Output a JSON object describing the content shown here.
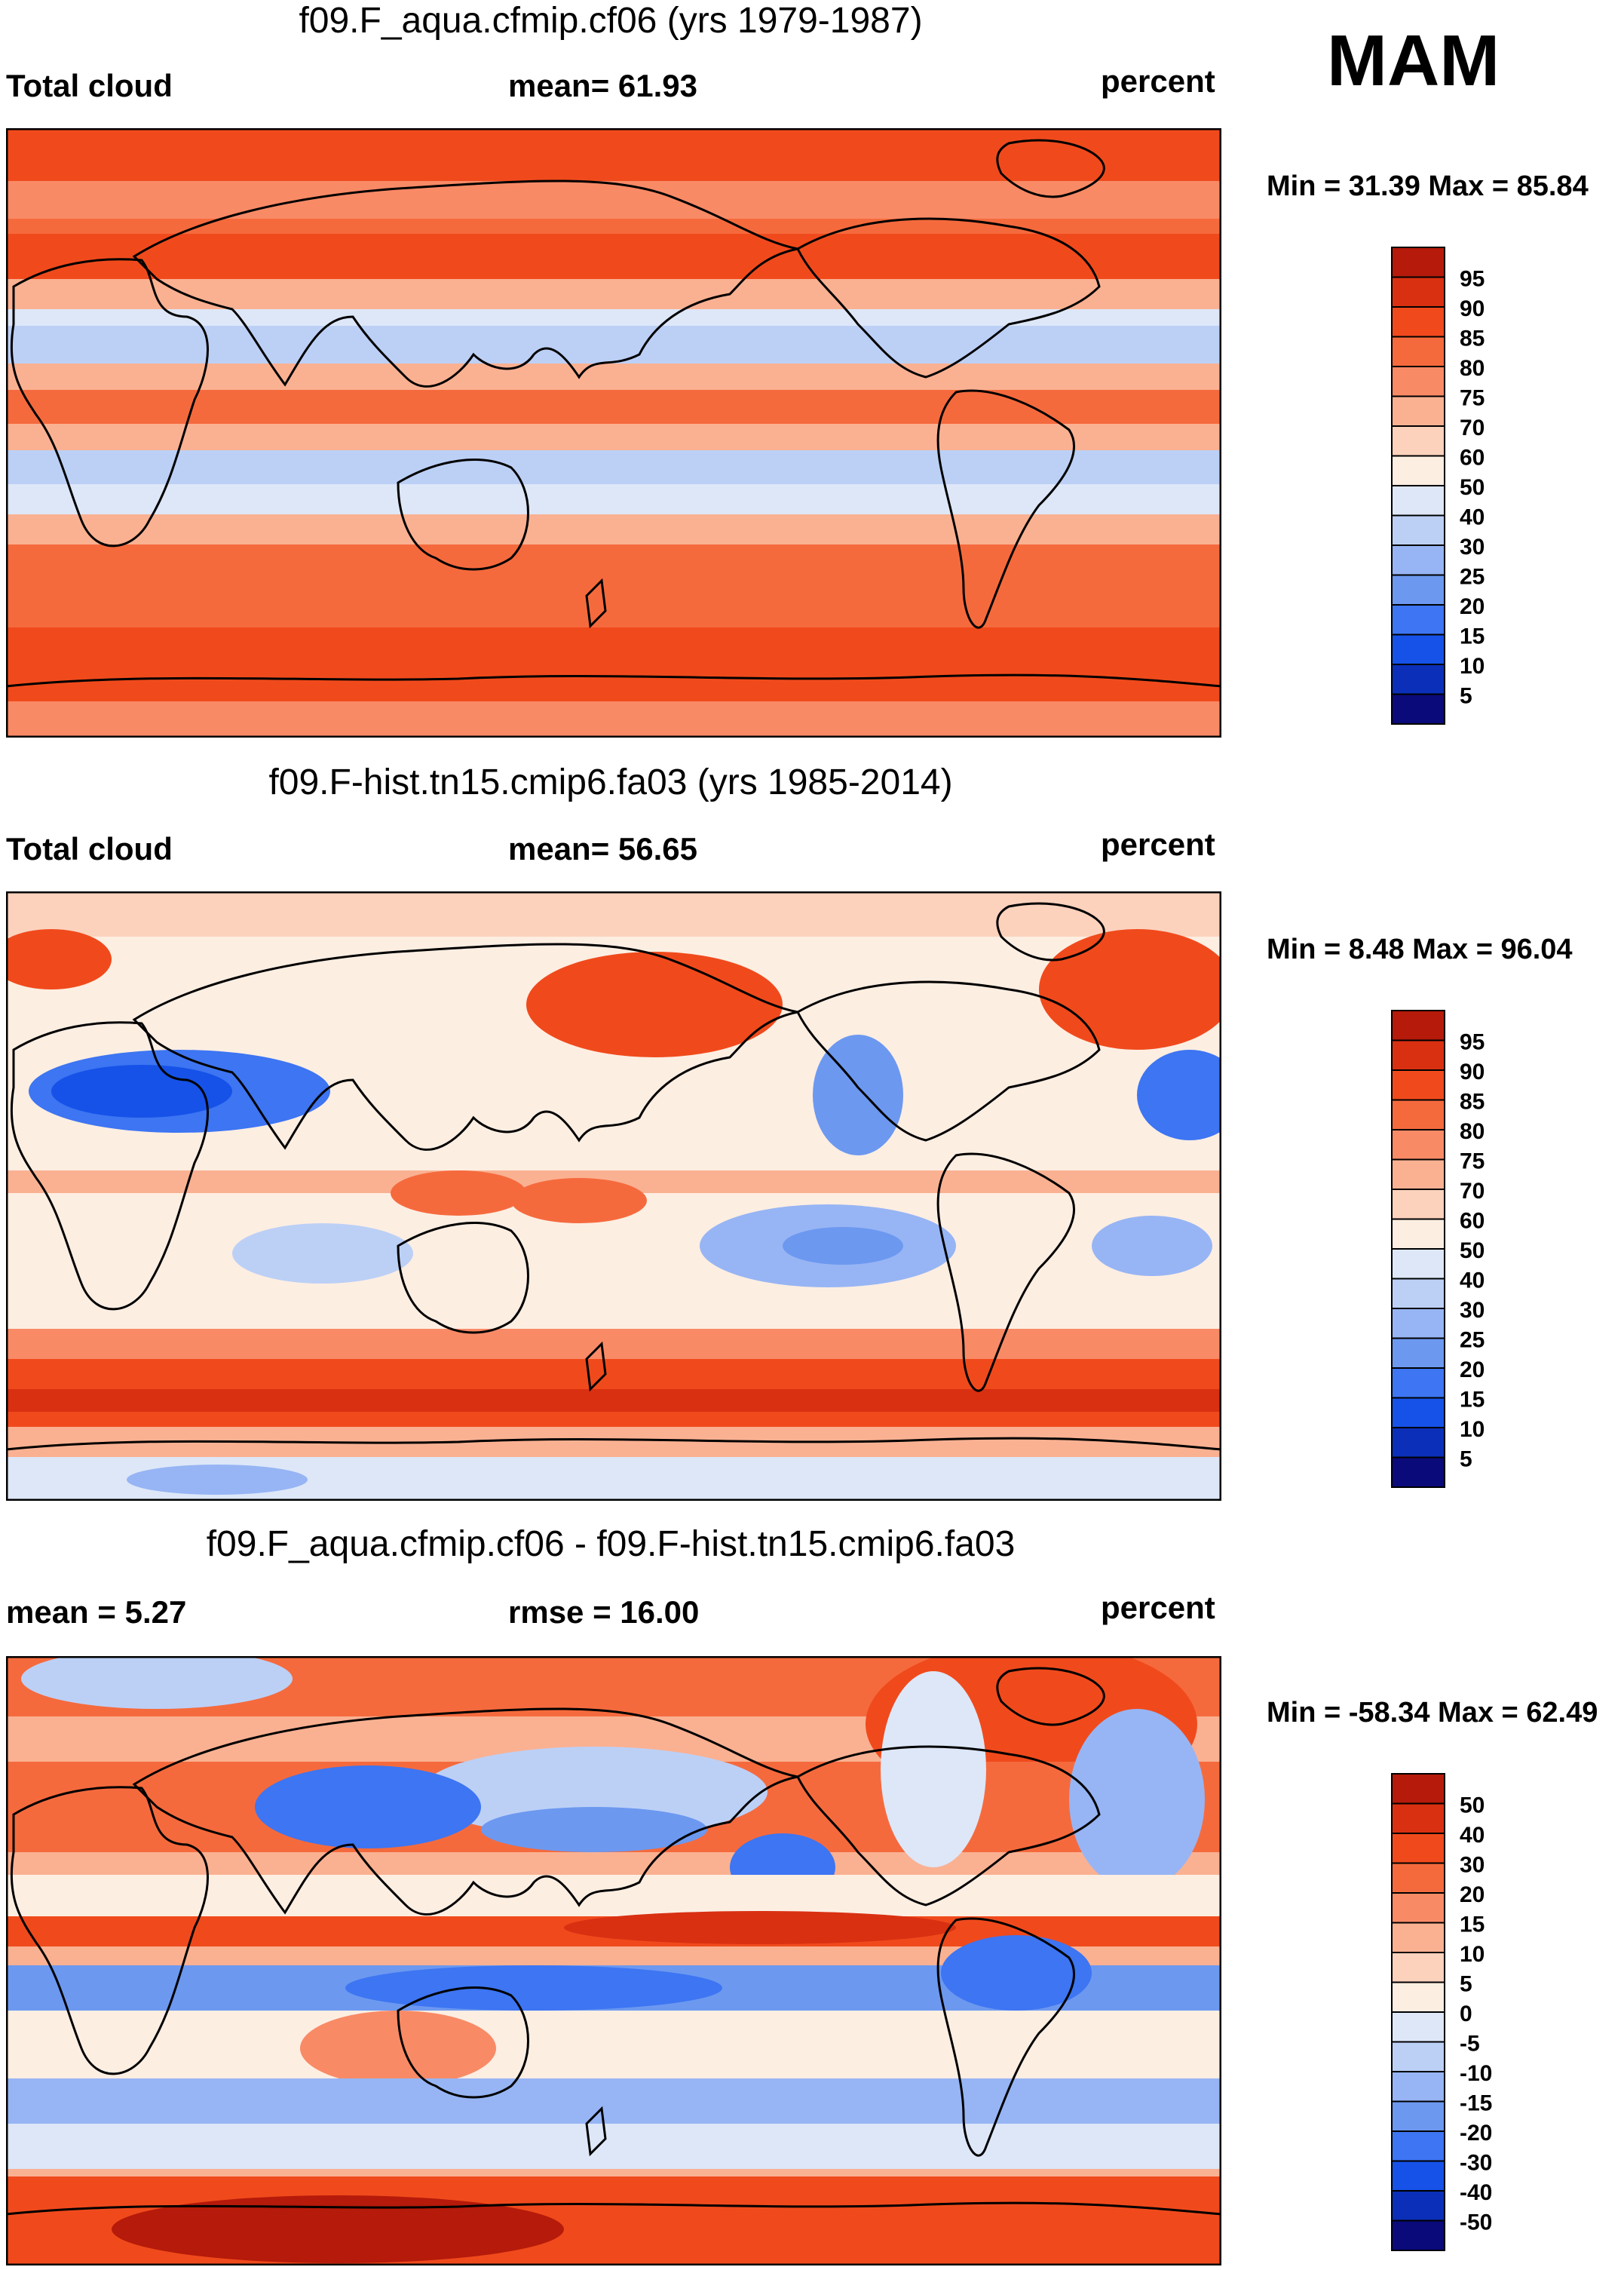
{
  "season": "MAM",
  "colors": {
    "scale": [
      "#0a0a7a",
      "#0b2fb8",
      "#1652e8",
      "#3d75f2",
      "#6c98f0",
      "#97b5f4",
      "#bcd0f6",
      "#dde7f8",
      "#fdeee2",
      "#fcd2bd",
      "#fab192",
      "#f98a66",
      "#f56a3d",
      "#f04a1c",
      "#d93012",
      "#b51a0a",
      "#8a0b04"
    ],
    "land_outline": "#000000",
    "frame": "#000000"
  },
  "panels": [
    {
      "title": "f09.F_aqua.cfmip.cf06 (yrs 1979-1987)",
      "left_label": "Total cloud",
      "center_label": "mean=  61.93",
      "right_label": "percent",
      "minmax": "Min =  31.39 Max =  85.84",
      "colorbar_labels": [
        "95",
        "90",
        "85",
        "80",
        "75",
        "70",
        "60",
        "50",
        "40",
        "30",
        "25",
        "20",
        "15",
        "10",
        "5"
      ]
    },
    {
      "title": "f09.F-hist.tn15.cmip6.fa03 (yrs 1985-2014)",
      "left_label": "Total cloud",
      "center_label": "mean=  56.65",
      "right_label": "percent",
      "minmax": "Min =   8.48 Max =  96.04",
      "colorbar_labels": [
        "95",
        "90",
        "85",
        "80",
        "75",
        "70",
        "60",
        "50",
        "40",
        "30",
        "25",
        "20",
        "15",
        "10",
        "5"
      ]
    },
    {
      "title": "f09.F_aqua.cfmip.cf06 - f09.F-hist.tn15.cmip6.fa03",
      "left_label": "mean =    5.27",
      "center_label": "rmse =  16.00",
      "right_label": "percent",
      "minmax": "Min = -58.34 Max =  62.49",
      "colorbar_labels": [
        "50",
        "40",
        "30",
        "20",
        "15",
        "10",
        "5",
        "0",
        "-5",
        "-10",
        "-15",
        "-20",
        "-30",
        "-40",
        "-50"
      ]
    }
  ]
}
